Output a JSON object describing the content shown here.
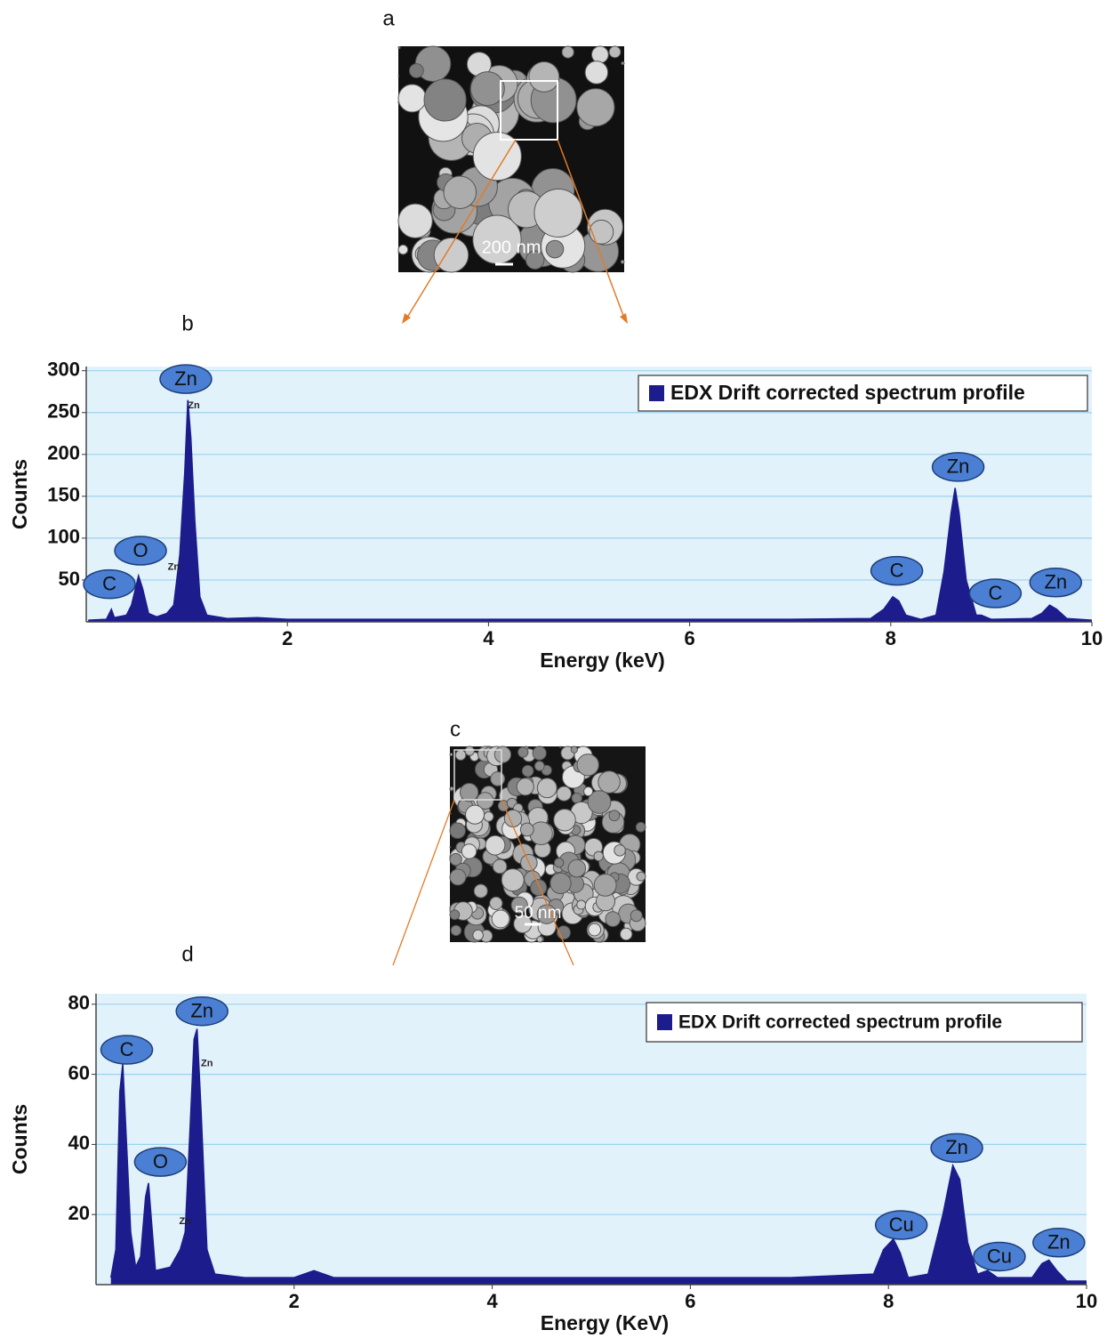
{
  "panel_labels": [
    "a",
    "b",
    "c",
    "d"
  ],
  "micrographs": [
    {
      "scale_bar": "200 nm"
    },
    {
      "scale_bar": "50 nm"
    }
  ],
  "chart_data": [
    {
      "type": "area",
      "xlabel": "Energy (keV)",
      "ylabel": "Counts",
      "xlim": [
        0,
        10
      ],
      "ylim": [
        0,
        305
      ],
      "xticks": [
        2,
        4,
        6,
        8,
        10
      ],
      "yticks": [
        50,
        100,
        150,
        200,
        250,
        300
      ],
      "grid": true,
      "legend": "upper right",
      "x": [
        0.02,
        0.2,
        0.25,
        0.28,
        0.4,
        0.45,
        0.52,
        0.56,
        0.62,
        0.7,
        0.8,
        0.87,
        0.93,
        0.98,
        1.01,
        1.04,
        1.08,
        1.13,
        1.2,
        1.4,
        1.7,
        2.0,
        3,
        4,
        5,
        6,
        7,
        7.8,
        7.93,
        8.02,
        8.08,
        8.15,
        8.3,
        8.45,
        8.53,
        8.6,
        8.64,
        8.68,
        8.75,
        8.85,
        8.9,
        9.0,
        9.4,
        9.5,
        9.58,
        9.65,
        9.75,
        10
      ],
      "series": [
        {
          "name": "EDX Drift corrected spectrum profile",
          "color": "#1c1c8c",
          "values": [
            2,
            3,
            15,
            5,
            8,
            20,
            55,
            40,
            10,
            6,
            10,
            20,
            80,
            180,
            265,
            220,
            120,
            30,
            8,
            4,
            5,
            3,
            3,
            3,
            3,
            3,
            3,
            4,
            15,
            30,
            25,
            8,
            3,
            8,
            60,
            130,
            160,
            130,
            50,
            8,
            8,
            3,
            4,
            10,
            20,
            15,
            4,
            2
          ]
        }
      ],
      "annotations": [
        {
          "text": "C",
          "x": 0.23,
          "y": 45
        },
        {
          "text": "O",
          "x": 0.54,
          "y": 85
        },
        {
          "text": "Zn",
          "x": 0.99,
          "y": 290
        },
        {
          "text": "C",
          "x": 8.06,
          "y": 61
        },
        {
          "text": "Zn",
          "x": 8.67,
          "y": 185
        },
        {
          "text": "C",
          "x": 9.04,
          "y": 34
        },
        {
          "text": "Zn",
          "x": 9.64,
          "y": 47
        }
      ],
      "small_labels": [
        {
          "text": "Zn",
          "x": 1.07,
          "y": 258
        },
        {
          "text": "Zn",
          "x": 0.87,
          "y": 65
        }
      ]
    },
    {
      "type": "area",
      "xlabel": "Energy (KeV)",
      "ylabel": "Counts",
      "xlim": [
        0,
        10
      ],
      "ylim": [
        0,
        83
      ],
      "xticks": [
        2,
        4,
        6,
        8,
        10
      ],
      "yticks": [
        20,
        40,
        60,
        80
      ],
      "grid": true,
      "legend": "upper right",
      "x": [
        0.15,
        0.2,
        0.24,
        0.27,
        0.3,
        0.35,
        0.4,
        0.45,
        0.5,
        0.53,
        0.56,
        0.6,
        0.75,
        0.85,
        0.9,
        0.95,
        0.99,
        1.02,
        1.06,
        1.12,
        1.2,
        1.5,
        2,
        2.2,
        2.4,
        3,
        4,
        5,
        6,
        7,
        7.85,
        7.95,
        8.05,
        8.12,
        8.2,
        8.4,
        8.55,
        8.65,
        8.72,
        8.8,
        8.9,
        9.0,
        9.1,
        9.45,
        9.55,
        9.62,
        9.7,
        9.8,
        10
      ],
      "series": [
        {
          "name": "EDX Drift corrected spectrum profile",
          "color": "#1c1c8c",
          "values": [
            2,
            10,
            55,
            63,
            45,
            15,
            5,
            8,
            25,
            29,
            18,
            4,
            5,
            10,
            15,
            45,
            70,
            73,
            50,
            10,
            3,
            2,
            2,
            4,
            2,
            2,
            2,
            2,
            2,
            2,
            3,
            10,
            13,
            9,
            2,
            3,
            20,
            34,
            30,
            12,
            3,
            4,
            2,
            2,
            6,
            7,
            4,
            1,
            1
          ]
        }
      ],
      "annotations": [
        {
          "text": "C",
          "x": 0.31,
          "y": 67
        },
        {
          "text": "O",
          "x": 0.65,
          "y": 35
        },
        {
          "text": "Zn",
          "x": 1.07,
          "y": 78
        },
        {
          "text": "Cu",
          "x": 8.13,
          "y": 17
        },
        {
          "text": "Zn",
          "x": 8.69,
          "y": 39
        },
        {
          "text": "Cu",
          "x": 9.12,
          "y": 8
        },
        {
          "text": "Zn",
          "x": 9.72,
          "y": 12
        }
      ],
      "small_labels": [
        {
          "text": "Zn",
          "x": 1.12,
          "y": 63
        },
        {
          "text": "Zn",
          "x": 0.9,
          "y": 18
        }
      ]
    }
  ]
}
